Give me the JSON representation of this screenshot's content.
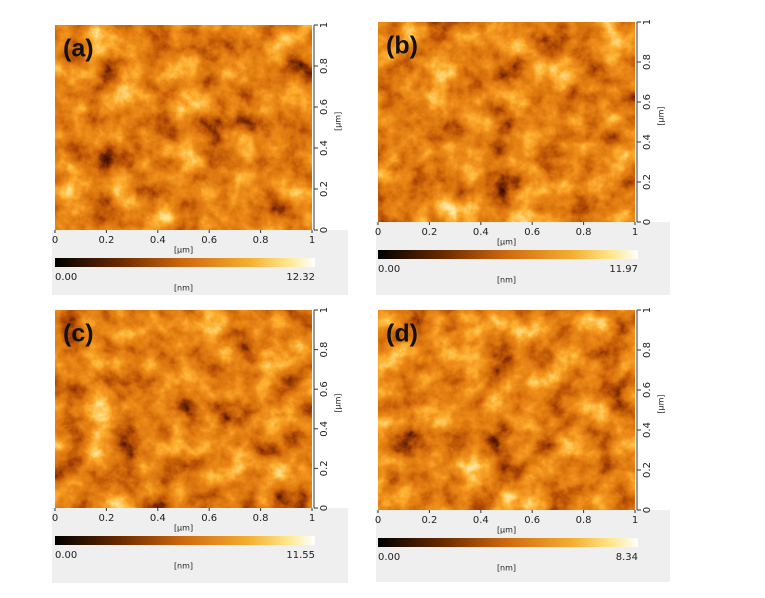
{
  "panels": [
    {
      "label": "(a)",
      "x_ticks": [
        0,
        0.2,
        0.4,
        0.6,
        0.8,
        1
      ],
      "x_unit": "[µm]",
      "y_ticks": [
        0,
        0.2,
        0.4,
        0.6,
        0.8,
        1
      ],
      "y_unit": "[µm]",
      "colorbar": {
        "min": "0.00",
        "max": "12.32",
        "unit": "[nm]"
      }
    },
    {
      "label": "(b)",
      "x_ticks": [
        0,
        0.2,
        0.4,
        0.6,
        0.8,
        1
      ],
      "x_unit": "[µm]",
      "y_ticks": [
        0,
        0.2,
        0.4,
        0.6,
        0.8,
        1
      ],
      "y_unit": "[µm]",
      "colorbar": {
        "min": "0.00",
        "max": "11.97",
        "unit": "[nm]"
      }
    },
    {
      "label": "(c)",
      "x_ticks": [
        0,
        0.2,
        0.4,
        0.6,
        0.8,
        1
      ],
      "x_unit": "[µm]",
      "y_ticks": [
        0,
        0.2,
        0.4,
        0.6,
        0.8,
        1
      ],
      "y_unit": "[µm]",
      "colorbar": {
        "min": "0.00",
        "max": "11.55",
        "unit": "[nm]"
      }
    },
    {
      "label": "(d)",
      "x_ticks": [
        0,
        0.2,
        0.4,
        0.6,
        0.8,
        1
      ],
      "x_unit": "[µm]",
      "y_ticks": [
        0,
        0.2,
        0.4,
        0.6,
        0.8,
        1
      ],
      "y_unit": "[µm]",
      "colorbar": {
        "min": "0.00",
        "max": "8.34",
        "unit": "[nm]"
      }
    }
  ]
}
